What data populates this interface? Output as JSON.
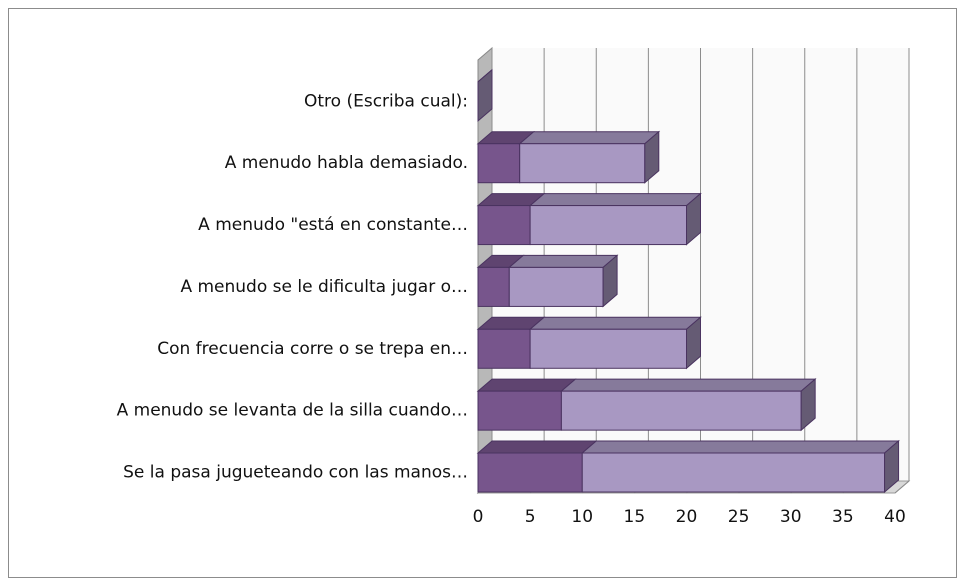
{
  "chart_data": {
    "type": "bar3d_stacked_horizontal",
    "categories": [
      "Otro (Escriba cual):",
      "A menudo habla demasiado.",
      "A menudo \"está en constante…",
      "A menudo se le dificulta jugar o…",
      "Con frecuencia corre o se trepa en…",
      "A menudo se levanta de la silla cuando…",
      "Se la pasa jugueteando con las manos…"
    ],
    "series": [
      {
        "color": "#77558c",
        "values": [
          0,
          4,
          5,
          3,
          5,
          8,
          10
        ]
      },
      {
        "color": "#a898c2",
        "values": [
          0,
          12,
          15,
          9,
          15,
          23,
          29
        ]
      }
    ],
    "xlim": [
      0,
      40
    ],
    "xticks": [
      0,
      5,
      10,
      15,
      20,
      25,
      30,
      35,
      40
    ],
    "grid": true
  }
}
